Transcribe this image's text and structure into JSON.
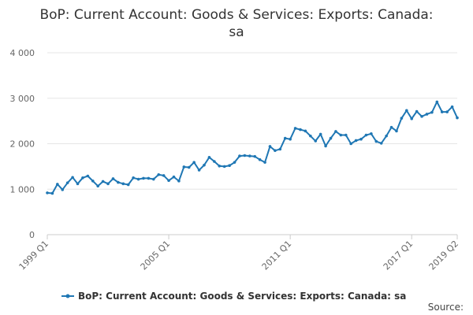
{
  "chart_data": {
    "type": "line",
    "title_line1": "BoP: Current Account: Goods & Services: Exports: Canada:",
    "title_line2": "sa",
    "xlabel": "",
    "ylabel": "",
    "ylim": [
      0,
      4000
    ],
    "yticks": [
      {
        "value": 0,
        "label": "0"
      },
      {
        "value": 1000,
        "label": "1 000"
      },
      {
        "value": 2000,
        "label": "2 000"
      },
      {
        "value": 3000,
        "label": "3 000"
      },
      {
        "value": 4000,
        "label": "4 000"
      }
    ],
    "xticks": [
      {
        "index": 0,
        "label": "1999 Q1"
      },
      {
        "index": 24,
        "label": "2005 Q1"
      },
      {
        "index": 48,
        "label": "2011 Q1"
      },
      {
        "index": 72,
        "label": "2017 Q1"
      },
      {
        "index": 81,
        "label": "2019 Q2"
      }
    ],
    "grid": true,
    "legend_position": "bottom",
    "series": [
      {
        "name": "BoP: Current Account: Goods & Services: Exports: Canada: sa",
        "color": "#1f77b4",
        "x": [
          "1999 Q1",
          "1999 Q2",
          "1999 Q3",
          "1999 Q4",
          "2000 Q1",
          "2000 Q2",
          "2000 Q3",
          "2000 Q4",
          "2001 Q1",
          "2001 Q2",
          "2001 Q3",
          "2001 Q4",
          "2002 Q1",
          "2002 Q2",
          "2002 Q3",
          "2002 Q4",
          "2003 Q1",
          "2003 Q2",
          "2003 Q3",
          "2003 Q4",
          "2004 Q1",
          "2004 Q2",
          "2004 Q3",
          "2004 Q4",
          "2005 Q1",
          "2005 Q2",
          "2005 Q3",
          "2005 Q4",
          "2006 Q1",
          "2006 Q2",
          "2006 Q3",
          "2006 Q4",
          "2007 Q1",
          "2007 Q2",
          "2007 Q3",
          "2007 Q4",
          "2008 Q1",
          "2008 Q2",
          "2008 Q3",
          "2008 Q4",
          "2009 Q1",
          "2009 Q2",
          "2009 Q3",
          "2009 Q4",
          "2010 Q1",
          "2010 Q2",
          "2010 Q3",
          "2010 Q4",
          "2011 Q1",
          "2011 Q2",
          "2011 Q3",
          "2011 Q4",
          "2012 Q1",
          "2012 Q2",
          "2012 Q3",
          "2012 Q4",
          "2013 Q1",
          "2013 Q2",
          "2013 Q3",
          "2013 Q4",
          "2014 Q1",
          "2014 Q2",
          "2014 Q3",
          "2014 Q4",
          "2015 Q1",
          "2015 Q2",
          "2015 Q3",
          "2015 Q4",
          "2016 Q1",
          "2016 Q2",
          "2016 Q3",
          "2016 Q4",
          "2017 Q1",
          "2017 Q2",
          "2017 Q3",
          "2017 Q4",
          "2018 Q1",
          "2018 Q2",
          "2018 Q3",
          "2018 Q4",
          "2019 Q1",
          "2019 Q2"
        ],
        "values": [
          920,
          910,
          1110,
          990,
          1140,
          1260,
          1120,
          1250,
          1290,
          1180,
          1070,
          1170,
          1120,
          1230,
          1150,
          1120,
          1100,
          1250,
          1220,
          1240,
          1240,
          1220,
          1320,
          1300,
          1190,
          1270,
          1180,
          1490,
          1480,
          1590,
          1420,
          1530,
          1700,
          1610,
          1510,
          1500,
          1520,
          1590,
          1730,
          1740,
          1730,
          1720,
          1650,
          1590,
          1940,
          1850,
          1880,
          2120,
          2100,
          2340,
          2310,
          2280,
          2170,
          2060,
          2210,
          1950,
          2120,
          2270,
          2190,
          2190,
          2000,
          2070,
          2100,
          2190,
          2220,
          2050,
          2010,
          2170,
          2360,
          2280,
          2560,
          2730,
          2550,
          2710,
          2600,
          2650,
          2690,
          2920,
          2700,
          2700,
          2810,
          2570
        ]
      }
    ],
    "credits": "Source:"
  }
}
